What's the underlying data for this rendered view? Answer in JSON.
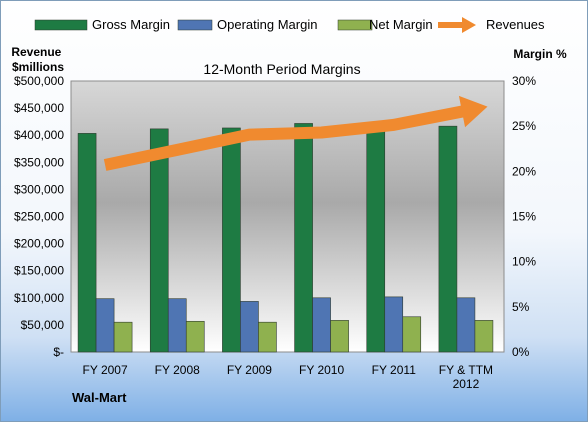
{
  "chart_data": {
    "type": "bar",
    "title": "12-Month Period Margins",
    "company": "Wal-Mart",
    "ylabel_left": [
      "Revenue",
      "$millions"
    ],
    "ylabel_right": "Margin %",
    "categories": [
      "FY 2007",
      "FY 2008",
      "FY 2009",
      "FY 2010",
      "FY 2011",
      "FY & TTM 2012"
    ],
    "category_lines": [
      [
        "FY 2007"
      ],
      [
        "FY 2008"
      ],
      [
        "FY 2009"
      ],
      [
        "FY 2010"
      ],
      [
        "FY 2011"
      ],
      [
        "FY & TTM",
        "2012"
      ]
    ],
    "y_left": {
      "min": 0,
      "max": 500000,
      "step": 50000,
      "tick_labels": [
        "$-",
        "$50,000",
        "$100,000",
        "$150,000",
        "$200,000",
        "$250,000",
        "$300,000",
        "$350,000",
        "$400,000",
        "$450,000",
        "$500,000"
      ]
    },
    "y_right": {
      "min": 0,
      "max": 30,
      "step": 5,
      "tick_labels": [
        "0%",
        "5%",
        "10%",
        "15%",
        "20%",
        "25%",
        "30%"
      ]
    },
    "series": [
      {
        "name": "Gross Margin",
        "axis": "right",
        "color": "#1e7b43",
        "values": [
          24.2,
          24.7,
          24.8,
          25.3,
          25.2,
          25.0
        ]
      },
      {
        "name": "Operating Margin",
        "axis": "right",
        "color": "#4f75b3",
        "values": [
          5.9,
          5.9,
          5.6,
          6.0,
          6.1,
          6.0
        ]
      },
      {
        "name": "Net Margin",
        "axis": "right",
        "color": "#8fb14f",
        "values": [
          3.3,
          3.4,
          3.3,
          3.5,
          3.9,
          3.5
        ]
      },
      {
        "name": "Revenues",
        "axis": "left",
        "type": "arrow",
        "color": "#f08a2f",
        "values": [
          345000,
          373000,
          401000,
          405000,
          419000,
          445000
        ]
      }
    ],
    "legend_position": "top",
    "grid": false
  }
}
